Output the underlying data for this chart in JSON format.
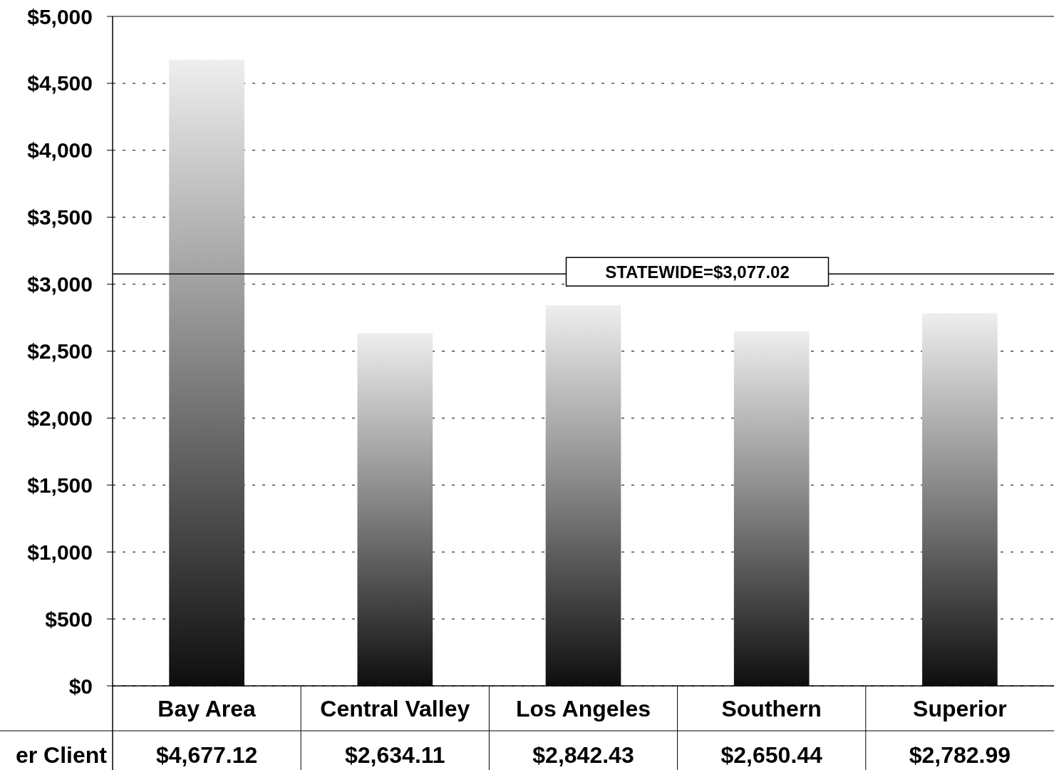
{
  "chart_data": {
    "type": "bar",
    "categories": [
      "Bay Area",
      "Central Valley",
      "Los Angeles",
      "Southern",
      "Superior"
    ],
    "series": [
      {
        "color": "#8c8c8c",
        "values": [
          4677.12,
          2634.11,
          2842.43,
          2650.44,
          2782.99
        ],
        "value_labels": [
          "$4,677.12",
          "$2,634.11",
          "$2,842.43",
          "$2,650.44",
          "$2,782.99"
        ]
      }
    ],
    "ylim": [
      0,
      5000
    ],
    "yticks": [
      {
        "value": 0,
        "label": "$0"
      },
      {
        "value": 500,
        "label": "$500"
      },
      {
        "value": 1000,
        "label": "$1,000"
      },
      {
        "value": 1500,
        "label": "$1,500"
      },
      {
        "value": 2000,
        "label": "$2,000"
      },
      {
        "value": 2500,
        "label": "$2,500"
      },
      {
        "value": 3000,
        "label": "$3,000"
      },
      {
        "value": 3500,
        "label": "$3,500"
      },
      {
        "value": 4000,
        "label": "$4,000"
      },
      {
        "value": 4500,
        "label": "$4,500"
      },
      {
        "value": 5000,
        "label": "$5,000"
      }
    ],
    "grid": "y",
    "annotations": [
      "er Client"
    ],
    "ref_lines": [
      {
        "axis": "y",
        "value": 3077.02,
        "label": "STATEWIDE=$3,077.02"
      }
    ]
  }
}
